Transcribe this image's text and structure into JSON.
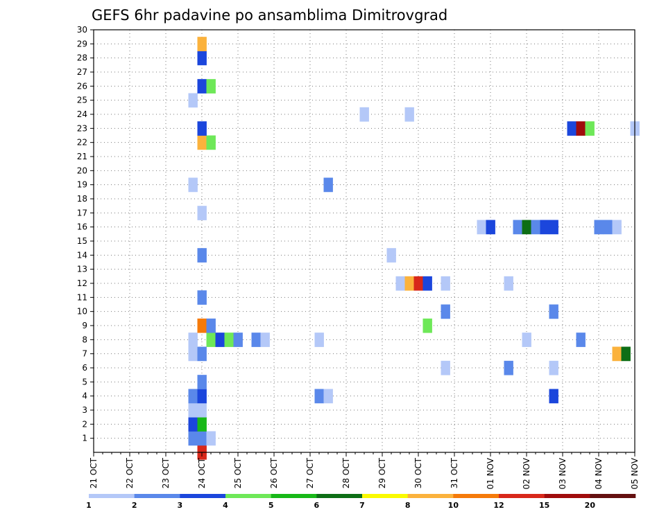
{
  "chart_data": {
    "type": "heatmap",
    "title": "GEFS 6hr padavine po ansamblima Dimitrovgrad",
    "x_tick_labels": [
      "21 OCT",
      "22 OCT",
      "23 OCT",
      "24 OCT",
      "25 OCT",
      "26 OCT",
      "27 OCT",
      "28 OCT",
      "29 OCT",
      "30 OCT",
      "31 OCT",
      "01 NOV",
      "02 NOV",
      "03 NOV",
      "04 NOV",
      "05 NOV"
    ],
    "x_range_days": [
      0,
      15
    ],
    "y_tick_labels": [
      "1",
      "2",
      "3",
      "4",
      "5",
      "6",
      "7",
      "8",
      "9",
      "10",
      "11",
      "12",
      "13",
      "14",
      "15",
      "16",
      "17",
      "18",
      "19",
      "20",
      "21",
      "22",
      "23",
      "24",
      "25",
      "26",
      "27",
      "28",
      "29",
      "30"
    ],
    "y_range": [
      0,
      30
    ],
    "grid": true,
    "colorbar": {
      "labels": [
        "1",
        "2",
        "3",
        "4",
        "5",
        "6",
        "7",
        "8",
        "10",
        "12",
        "15",
        "20"
      ],
      "colors": [
        "#b4c8f8",
        "#5a88ea",
        "#1b46dc",
        "#6ee858",
        "#18b818",
        "#0d6e16",
        "#fafa00",
        "#fbb23c",
        "#f57a0a",
        "#d8281a",
        "#a00c0c",
        "#641010"
      ]
    },
    "cells": [
      {
        "t": 3,
        "m": 0,
        "c": 10
      },
      {
        "t": 2.75,
        "m": 1,
        "c": 2
      },
      {
        "t": 3,
        "m": 1,
        "c": 2
      },
      {
        "t": 3.25,
        "m": 1,
        "c": 1
      },
      {
        "t": 2.75,
        "m": 2,
        "c": 3
      },
      {
        "t": 3,
        "m": 2,
        "c": 5
      },
      {
        "t": 2.75,
        "m": 3,
        "c": 1
      },
      {
        "t": 3,
        "m": 3,
        "c": 1
      },
      {
        "t": 2.75,
        "m": 4,
        "c": 2
      },
      {
        "t": 3,
        "m": 4,
        "c": 3
      },
      {
        "t": 6.25,
        "m": 4,
        "c": 2
      },
      {
        "t": 6.5,
        "m": 4,
        "c": 1
      },
      {
        "t": 12.75,
        "m": 4,
        "c": 3
      },
      {
        "t": 3,
        "m": 5,
        "c": 2
      },
      {
        "t": 9.75,
        "m": 6,
        "c": 1
      },
      {
        "t": 11.5,
        "m": 6,
        "c": 2
      },
      {
        "t": 12.75,
        "m": 6,
        "c": 1
      },
      {
        "t": 2.75,
        "m": 7,
        "c": 1
      },
      {
        "t": 3,
        "m": 7,
        "c": 2
      },
      {
        "t": 14.5,
        "m": 7,
        "c": 8
      },
      {
        "t": 14.75,
        "m": 7,
        "c": 6
      },
      {
        "t": 2.75,
        "m": 8,
        "c": 1
      },
      {
        "t": 3.25,
        "m": 8,
        "c": 4
      },
      {
        "t": 3.5,
        "m": 8,
        "c": 3
      },
      {
        "t": 3.75,
        "m": 8,
        "c": 4
      },
      {
        "t": 4,
        "m": 8,
        "c": 2
      },
      {
        "t": 4.5,
        "m": 8,
        "c": 2
      },
      {
        "t": 4.75,
        "m": 8,
        "c": 1
      },
      {
        "t": 6.25,
        "m": 8,
        "c": 1
      },
      {
        "t": 12,
        "m": 8,
        "c": 1
      },
      {
        "t": 13.5,
        "m": 8,
        "c": 2
      },
      {
        "t": 3,
        "m": 9,
        "c": 9
      },
      {
        "t": 3.25,
        "m": 9,
        "c": 2
      },
      {
        "t": 9.25,
        "m": 9,
        "c": 4
      },
      {
        "t": 9.75,
        "m": 10,
        "c": 2
      },
      {
        "t": 12.75,
        "m": 10,
        "c": 2
      },
      {
        "t": 3,
        "m": 11,
        "c": 2
      },
      {
        "t": 8.5,
        "m": 12,
        "c": 1
      },
      {
        "t": 8.75,
        "m": 12,
        "c": 8
      },
      {
        "t": 9,
        "m": 12,
        "c": 10
      },
      {
        "t": 9.25,
        "m": 12,
        "c": 3
      },
      {
        "t": 9.75,
        "m": 12,
        "c": 1
      },
      {
        "t": 11.5,
        "m": 12,
        "c": 1
      },
      {
        "t": 8.25,
        "m": 14,
        "c": 1
      },
      {
        "t": 3,
        "m": 14,
        "c": 2
      },
      {
        "t": 10.75,
        "m": 16,
        "c": 1
      },
      {
        "t": 11,
        "m": 16,
        "c": 3
      },
      {
        "t": 11.75,
        "m": 16,
        "c": 2
      },
      {
        "t": 12,
        "m": 16,
        "c": 6
      },
      {
        "t": 12.25,
        "m": 16,
        "c": 2
      },
      {
        "t": 12.5,
        "m": 16,
        "c": 3
      },
      {
        "t": 12.75,
        "m": 16,
        "c": 3
      },
      {
        "t": 14,
        "m": 16,
        "c": 2
      },
      {
        "t": 14.25,
        "m": 16,
        "c": 2
      },
      {
        "t": 14.5,
        "m": 16,
        "c": 1
      },
      {
        "t": 3,
        "m": 17,
        "c": 1
      },
      {
        "t": 2.75,
        "m": 19,
        "c": 1
      },
      {
        "t": 6.5,
        "m": 19,
        "c": 2
      },
      {
        "t": 3,
        "m": 22,
        "c": 8
      },
      {
        "t": 3.25,
        "m": 22,
        "c": 4
      },
      {
        "t": 3,
        "m": 23,
        "c": 3
      },
      {
        "t": 13.25,
        "m": 23,
        "c": 3
      },
      {
        "t": 13.5,
        "m": 23,
        "c": 11
      },
      {
        "t": 13.75,
        "m": 23,
        "c": 4
      },
      {
        "t": 15,
        "m": 23,
        "c": 1
      },
      {
        "t": 7.5,
        "m": 24,
        "c": 1
      },
      {
        "t": 8.75,
        "m": 24,
        "c": 1
      },
      {
        "t": 2.75,
        "m": 25,
        "c": 1
      },
      {
        "t": 3,
        "m": 26,
        "c": 3
      },
      {
        "t": 3.25,
        "m": 26,
        "c": 4
      },
      {
        "t": 3,
        "m": 28,
        "c": 3
      },
      {
        "t": 3,
        "m": 29,
        "c": 8
      }
    ]
  }
}
